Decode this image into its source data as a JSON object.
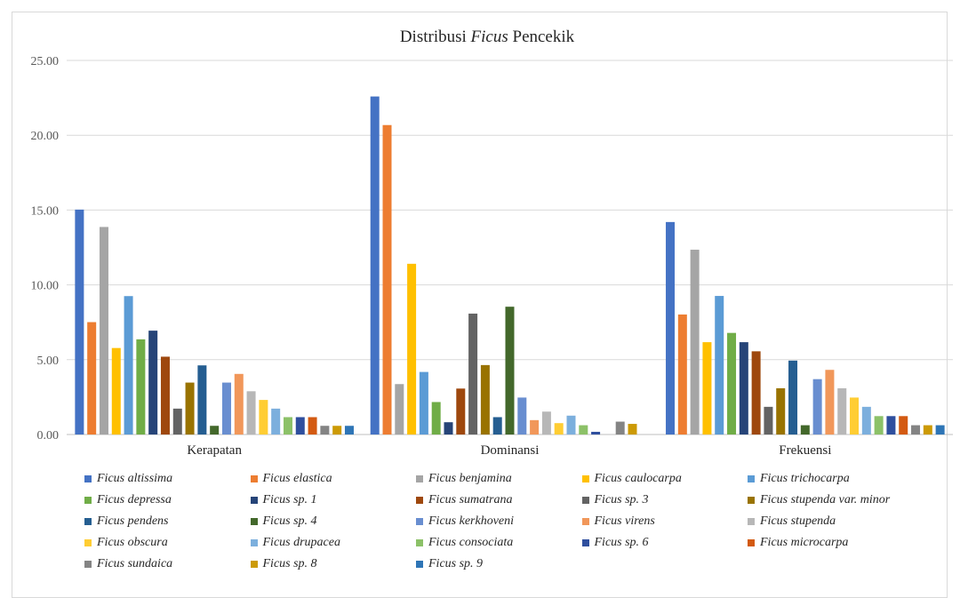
{
  "chart_data": {
    "type": "bar",
    "title_prefix": "Distribusi ",
    "title_italic": "Ficus",
    "title_suffix": " Pencekik",
    "xlabel": "",
    "ylabel": "",
    "ylim": [
      0,
      25
    ],
    "yticks": [
      "0.00",
      "5.00",
      "10.00",
      "15.00",
      "20.00",
      "25.00"
    ],
    "grid": true,
    "legend_position": "bottom",
    "categories": [
      "Kerapatan",
      "Dominansi",
      "Frekuensi"
    ],
    "series": [
      {
        "name": "Ficus altissima",
        "color": "#4472C4",
        "values": [
          15.03,
          22.59,
          14.2
        ]
      },
      {
        "name": "Ficus elastica",
        "color": "#ED7D31",
        "values": [
          7.51,
          20.68,
          8.02
        ]
      },
      {
        "name": "Ficus benjamina",
        "color": "#A5A5A5",
        "values": [
          13.87,
          3.37,
          12.35
        ]
      },
      {
        "name": "Ficus caulocarpa",
        "color": "#FFC000",
        "values": [
          5.78,
          11.41,
          6.17
        ]
      },
      {
        "name": "Ficus trichocarpa",
        "color": "#5B9BD5",
        "values": [
          9.25,
          4.18,
          9.26
        ]
      },
      {
        "name": "Ficus depressa",
        "color": "#70AD47",
        "values": [
          6.36,
          2.17,
          6.79
        ]
      },
      {
        "name": "Ficus sp. 1",
        "color": "#264478",
        "values": [
          6.94,
          0.82,
          6.17
        ]
      },
      {
        "name": "Ficus sumatrana",
        "color": "#9E480E",
        "values": [
          5.2,
          3.07,
          5.56
        ]
      },
      {
        "name": "Ficus sp. 3",
        "color": "#636363",
        "values": [
          1.73,
          8.08,
          1.85
        ]
      },
      {
        "name": "Ficus stupenda var.  minor",
        "color": "#997300",
        "values": [
          3.47,
          4.64,
          3.09
        ]
      },
      {
        "name": "Ficus pendens",
        "color": "#255E91",
        "values": [
          4.62,
          1.16,
          4.94
        ]
      },
      {
        "name": "Ficus sp. 4",
        "color": "#43682B",
        "values": [
          0.58,
          8.54,
          0.62
        ]
      },
      {
        "name": "Ficus kerkhoveni",
        "color": "#698ED0",
        "values": [
          3.47,
          2.47,
          3.7
        ]
      },
      {
        "name": "Ficus virens",
        "color": "#F1975A",
        "values": [
          4.05,
          0.96,
          4.32
        ]
      },
      {
        "name": "Ficus stupenda",
        "color": "#B7B7B7",
        "values": [
          2.89,
          1.53,
          3.09
        ]
      },
      {
        "name": "Ficus obscura",
        "color": "#FFCD33",
        "values": [
          2.31,
          0.76,
          2.47
        ]
      },
      {
        "name": "Ficus drupacea",
        "color": "#7CAFDD",
        "values": [
          1.73,
          1.26,
          1.85
        ]
      },
      {
        "name": "Ficus consociata",
        "color": "#8CC168",
        "values": [
          1.16,
          0.62,
          1.23
        ]
      },
      {
        "name": "Ficus sp. 6",
        "color": "#2F4F9E",
        "values": [
          1.16,
          0.18,
          1.23
        ]
      },
      {
        "name": "Ficus microcarpa",
        "color": "#D35A12",
        "values": [
          1.16,
          0.0,
          1.23
        ]
      },
      {
        "name": "Ficus sundaica",
        "color": "#848484",
        "values": [
          0.58,
          0.86,
          0.62
        ]
      },
      {
        "name": "Ficus sp. 8",
        "color": "#CC9A06",
        "values": [
          0.58,
          0.71,
          0.62
        ]
      },
      {
        "name": "Ficus sp. 9",
        "color": "#2E75B6",
        "values": [
          0.58,
          0.0,
          0.62
        ]
      }
    ]
  }
}
